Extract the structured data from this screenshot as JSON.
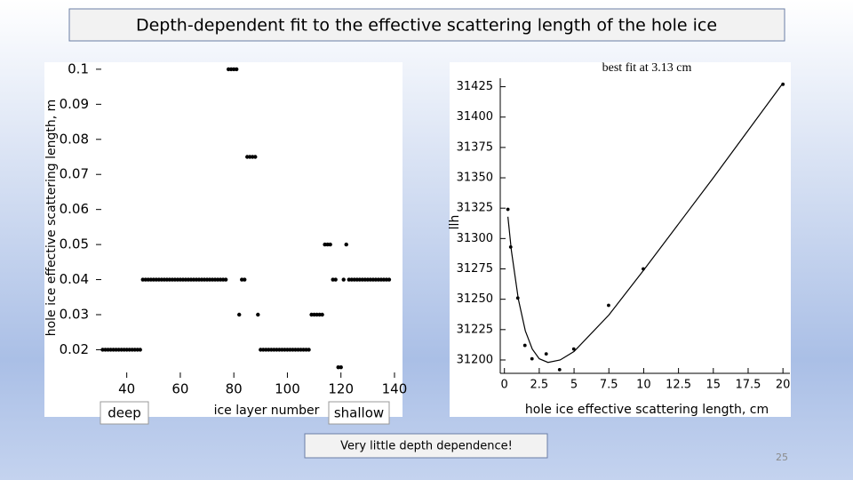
{
  "slide_title": "Depth-dependent fit to the effective scattering length of the hole ice",
  "chart_data": [
    {
      "type": "scatter",
      "x_label": "ice layer number",
      "y_label": "hole ice effective scattering length, m",
      "annotations": [
        "deep",
        "shallow"
      ],
      "color": "#000000",
      "x": [
        31,
        32,
        33,
        34,
        35,
        36,
        37,
        38,
        39,
        40,
        41,
        42,
        43,
        44,
        45,
        46,
        47,
        48,
        49,
        50,
        51,
        52,
        53,
        54,
        55,
        56,
        57,
        58,
        59,
        60,
        61,
        62,
        63,
        64,
        65,
        66,
        67,
        68,
        69,
        70,
        71,
        72,
        73,
        74,
        75,
        76,
        77,
        78,
        79,
        80,
        81,
        82,
        83,
        84,
        85,
        86,
        87,
        88,
        89,
        90,
        91,
        92,
        93,
        94,
        95,
        96,
        97,
        98,
        99,
        100,
        101,
        102,
        103,
        104,
        105,
        106,
        107,
        108,
        109,
        110,
        111,
        112,
        113,
        114,
        115,
        116,
        117,
        118,
        119,
        120,
        121,
        122,
        123,
        124,
        125,
        126,
        127,
        128,
        129,
        130,
        131,
        132,
        133,
        134,
        135,
        136,
        137,
        138
      ],
      "values": [
        0.02,
        0.02,
        0.02,
        0.02,
        0.02,
        0.02,
        0.02,
        0.02,
        0.02,
        0.02,
        0.02,
        0.02,
        0.02,
        0.02,
        0.02,
        0.04,
        0.04,
        0.04,
        0.04,
        0.04,
        0.04,
        0.04,
        0.04,
        0.04,
        0.04,
        0.04,
        0.04,
        0.04,
        0.04,
        0.04,
        0.04,
        0.04,
        0.04,
        0.04,
        0.04,
        0.04,
        0.04,
        0.04,
        0.04,
        0.04,
        0.04,
        0.04,
        0.04,
        0.04,
        0.04,
        0.04,
        0.04,
        0.1,
        0.1,
        0.1,
        0.1,
        0.03,
        0.04,
        0.04,
        0.075,
        0.075,
        0.075,
        0.075,
        0.03,
        0.02,
        0.02,
        0.02,
        0.02,
        0.02,
        0.02,
        0.02,
        0.02,
        0.02,
        0.02,
        0.02,
        0.02,
        0.02,
        0.02,
        0.02,
        0.02,
        0.02,
        0.02,
        0.02,
        0.03,
        0.03,
        0.03,
        0.03,
        0.03,
        0.05,
        0.05,
        0.05,
        0.04,
        0.04,
        0.015,
        0.015,
        0.04,
        0.05,
        0.04,
        0.04,
        0.04,
        0.04,
        0.04,
        0.04,
        0.04,
        0.04,
        0.04,
        0.04,
        0.04,
        0.04,
        0.04,
        0.04,
        0.04,
        0.04
      ],
      "xlim": [
        28.5,
        142
      ],
      "ylim": [
        0.012,
        0.102
      ],
      "xticks": [
        40,
        60,
        80,
        100,
        120,
        140
      ],
      "yticks": [
        0.02,
        0.03,
        0.04,
        0.05,
        0.06,
        0.07,
        0.08,
        0.09,
        0.1
      ]
    },
    {
      "type": "scatter",
      "title": "best fit at 3.13 cm",
      "x_label": "hole ice effective scattering length, cm",
      "y_label": "llh",
      "color": "#000000",
      "x": [
        0.25,
        0.45,
        0.96,
        1.47,
        1.98,
        3.0,
        3.96,
        4.98,
        7.48,
        9.97,
        20
      ],
      "values": [
        31324,
        31293,
        31251,
        31212,
        31201,
        31205,
        31192,
        31209,
        31245,
        31275,
        31427
      ],
      "fit": {
        "x": [
          0.25,
          0.5,
          1,
          1.5,
          2,
          2.5,
          3.13,
          4,
          5,
          7.5,
          10,
          12.5,
          15,
          17.5,
          20
        ],
        "values": [
          31318,
          31290,
          31250,
          31224,
          31209,
          31201,
          31198,
          31200,
          31207,
          31237,
          31274,
          31312,
          31350,
          31389,
          31428
        ]
      },
      "xlim": [
        -0.3,
        20.5
      ],
      "ylim": [
        31189,
        31432
      ],
      "xticks": [
        0,
        2.5,
        5,
        7.5,
        10,
        12.5,
        15,
        17.5,
        20
      ],
      "yticks": [
        31200,
        31225,
        31250,
        31275,
        31300,
        31325,
        31350,
        31375,
        31400,
        31425
      ]
    }
  ],
  "note": "Very little depth dependence!",
  "page_number": 25
}
